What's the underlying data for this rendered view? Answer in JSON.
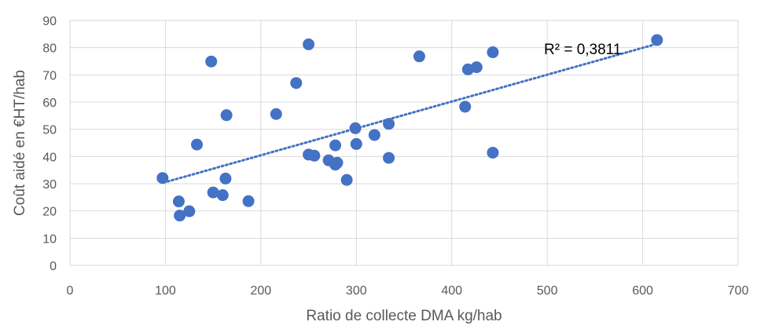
{
  "chart_data": {
    "type": "scatter",
    "xlabel": "Ratio de collecte DMA kg/hab",
    "ylabel": "Coût aidé en €HT/hab",
    "xlim": [
      0,
      700
    ],
    "ylim": [
      0,
      90
    ],
    "x_ticks": [
      "0",
      "100",
      "200",
      "300",
      "400",
      "500",
      "600",
      "700"
    ],
    "y_ticks": [
      "0",
      "10",
      "20",
      "30",
      "40",
      "50",
      "60",
      "70",
      "80",
      "90"
    ],
    "grid": "both",
    "annotation": "R² = 0,3811",
    "trendline": {
      "type": "linear",
      "x": [
        98,
        615
      ],
      "y": [
        30.4,
        81.4
      ]
    },
    "points": [
      {
        "x": 97,
        "y": 32.1
      },
      {
        "x": 114,
        "y": 23.5
      },
      {
        "x": 115,
        "y": 18.3
      },
      {
        "x": 125,
        "y": 19.9
      },
      {
        "x": 133,
        "y": 44.4
      },
      {
        "x": 148,
        "y": 74.9
      },
      {
        "x": 150,
        "y": 26.8
      },
      {
        "x": 160,
        "y": 25.8
      },
      {
        "x": 163,
        "y": 31.9
      },
      {
        "x": 164,
        "y": 55.2
      },
      {
        "x": 187,
        "y": 23.6
      },
      {
        "x": 216,
        "y": 55.6
      },
      {
        "x": 237,
        "y": 67.0
      },
      {
        "x": 250,
        "y": 81.2
      },
      {
        "x": 250,
        "y": 40.7
      },
      {
        "x": 256,
        "y": 40.3
      },
      {
        "x": 271,
        "y": 38.6
      },
      {
        "x": 278,
        "y": 44.1
      },
      {
        "x": 278,
        "y": 37.0
      },
      {
        "x": 280,
        "y": 37.7
      },
      {
        "x": 290,
        "y": 31.4
      },
      {
        "x": 299,
        "y": 50.4
      },
      {
        "x": 300,
        "y": 44.6
      },
      {
        "x": 319,
        "y": 47.9
      },
      {
        "x": 334,
        "y": 52.0
      },
      {
        "x": 334,
        "y": 39.5
      },
      {
        "x": 366,
        "y": 76.8
      },
      {
        "x": 414,
        "y": 58.3
      },
      {
        "x": 417,
        "y": 72.0
      },
      {
        "x": 426,
        "y": 72.8
      },
      {
        "x": 443,
        "y": 78.3
      },
      {
        "x": 443,
        "y": 41.4
      },
      {
        "x": 615,
        "y": 82.8
      }
    ],
    "colors": {
      "marker": "#4472c4",
      "trendline": "#4472c4",
      "grid": "#d9d9d9",
      "text": "#595959"
    }
  }
}
